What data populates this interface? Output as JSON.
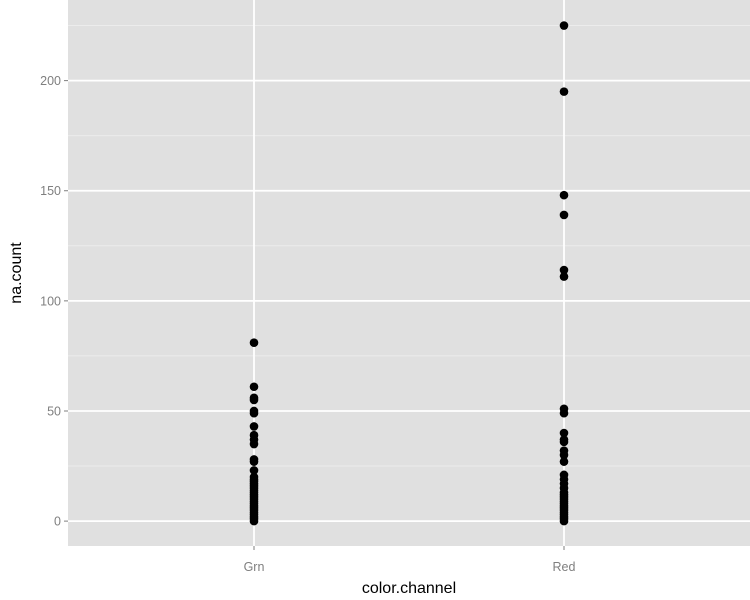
{
  "chart_data": {
    "type": "scatter",
    "title": "",
    "xlabel": "color.channel",
    "ylabel": "na.count",
    "categories": [
      "Grn",
      "Red"
    ],
    "x_ticks": [
      "Grn",
      "Red"
    ],
    "y_ticks": [
      "0",
      "50",
      "100",
      "150",
      "200"
    ],
    "y_tick_values": [
      0,
      50,
      100,
      150,
      200
    ],
    "ylim": [
      -11.3,
      236.6
    ],
    "grid": true,
    "legend": "none",
    "colors": {
      "panel_background": "#e0e0e0",
      "grid_major": "#ffffff",
      "grid_minor": "#ececec",
      "point": "#000000",
      "tick_text": "#7f7f7f"
    },
    "series": [
      {
        "category": "Grn",
        "values": [
          81,
          61,
          56,
          55,
          50,
          49,
          43,
          39,
          37,
          35,
          28,
          27,
          23,
          20,
          19,
          18,
          17,
          16,
          15,
          14,
          13,
          12,
          11,
          10,
          9,
          8,
          7,
          6,
          5,
          4,
          3,
          2,
          1,
          0
        ]
      },
      {
        "category": "Red",
        "values": [
          225,
          195,
          148,
          139,
          114,
          111,
          51,
          49,
          40,
          37,
          36,
          32,
          30,
          27,
          21,
          19,
          17,
          15,
          13,
          12,
          11,
          10,
          9,
          8,
          7,
          6,
          5,
          4,
          3,
          2,
          1,
          0
        ]
      }
    ]
  }
}
